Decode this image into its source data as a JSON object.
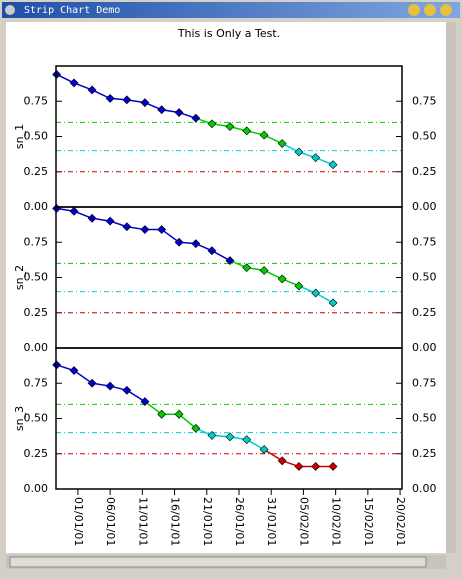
{
  "window": {
    "title": "Strip Chart Demo"
  },
  "chart_data": [
    {
      "type": "line",
      "title": "This is Only a Test.",
      "ylabel": "sn_1",
      "color": "#0000cc",
      "x": [
        -3.3,
        -0.6,
        2.2,
        5.0,
        7.6,
        10.4,
        13.0,
        15.7,
        18.3,
        20.8,
        23.6,
        26.2,
        28.9,
        31.7,
        34.3,
        36.9,
        39.6
      ],
      "values": [
        0.94,
        0.88,
        0.83,
        0.77,
        0.76,
        0.74,
        0.69,
        0.67,
        0.63,
        0.59,
        0.57,
        0.54,
        0.51,
        0.45,
        0.39,
        0.35,
        0.3
      ],
      "xlim": [
        -3.4,
        50.3
      ],
      "ylim": [
        0,
        1
      ],
      "yticks": [
        {
          "value": 0,
          "label": "0.00"
        },
        {
          "value": 0.25,
          "label": "0.25"
        },
        {
          "value": 0.5,
          "label": "0.50"
        },
        {
          "value": 0.75,
          "label": "0.75"
        }
      ],
      "reference_lines": [
        {
          "value": 0.6,
          "color": "#00cc00"
        },
        {
          "value": 0.4,
          "color": "#00cccc"
        },
        {
          "value": 0.25,
          "color": "#cc0000"
        }
      ]
    },
    {
      "type": "line",
      "ylabel": "sn_2",
      "color": "#0000cc",
      "x": [
        -3.3,
        -0.6,
        2.2,
        5.0,
        7.6,
        10.4,
        13.0,
        15.7,
        18.3,
        20.8,
        23.6,
        26.2,
        28.9,
        31.7,
        34.3,
        36.9,
        39.6
      ],
      "values": [
        0.99,
        0.97,
        0.92,
        0.9,
        0.86,
        0.84,
        0.84,
        0.75,
        0.74,
        0.69,
        0.62,
        0.57,
        0.55,
        0.49,
        0.44,
        0.39,
        0.32
      ],
      "xlim": [
        -3.4,
        50.3
      ],
      "ylim": [
        0,
        1
      ],
      "yticks": [
        {
          "value": 0,
          "label": "0.00"
        },
        {
          "value": 0.25,
          "label": "0.25"
        },
        {
          "value": 0.5,
          "label": "0.50"
        },
        {
          "value": 0.75,
          "label": "0.75"
        }
      ],
      "reference_lines": [
        {
          "value": 0.6,
          "color": "#00cc00"
        },
        {
          "value": 0.4,
          "color": "#00cccc"
        },
        {
          "value": 0.25,
          "color": "#cc0000"
        }
      ]
    },
    {
      "type": "line",
      "ylabel": "sn_3",
      "color": "#0000cc",
      "x": [
        -3.3,
        -0.6,
        2.2,
        5.0,
        7.6,
        10.4,
        13.0,
        15.7,
        18.3,
        20.8,
        23.6,
        26.2,
        28.9,
        31.7,
        34.3,
        36.9,
        39.6
      ],
      "values": [
        0.88,
        0.84,
        0.75,
        0.73,
        0.7,
        0.62,
        0.53,
        0.53,
        0.43,
        0.38,
        0.37,
        0.35,
        0.28,
        0.2,
        0.16,
        0.16,
        0.16
      ],
      "xlim": [
        -3.4,
        50.3
      ],
      "ylim": [
        0,
        1
      ],
      "yticks": [
        {
          "value": 0,
          "label": "0.00"
        },
        {
          "value": 0.25,
          "label": "0.25"
        },
        {
          "value": 0.5,
          "label": "0.50"
        },
        {
          "value": 0.75,
          "label": "0.75"
        }
      ],
      "xticks": [
        {
          "value": 0,
          "label": "01/01/01"
        },
        {
          "value": 5,
          "label": "06/01/01"
        },
        {
          "value": 10,
          "label": "11/01/01"
        },
        {
          "value": 15,
          "label": "16/01/01"
        },
        {
          "value": 20,
          "label": "21/01/01"
        },
        {
          "value": 25,
          "label": "26/01/01"
        },
        {
          "value": 30,
          "label": "31/01/01"
        },
        {
          "value": 35,
          "label": "05/02/01"
        },
        {
          "value": 40,
          "label": "10/02/01"
        },
        {
          "value": 45,
          "label": "15/02/01"
        },
        {
          "value": 50,
          "label": "20/02/01"
        }
      ],
      "reference_lines": [
        {
          "value": 0.6,
          "color": "#00cc00"
        },
        {
          "value": 0.4,
          "color": "#00cccc"
        },
        {
          "value": 0.25,
          "color": "#cc0000"
        }
      ]
    }
  ]
}
